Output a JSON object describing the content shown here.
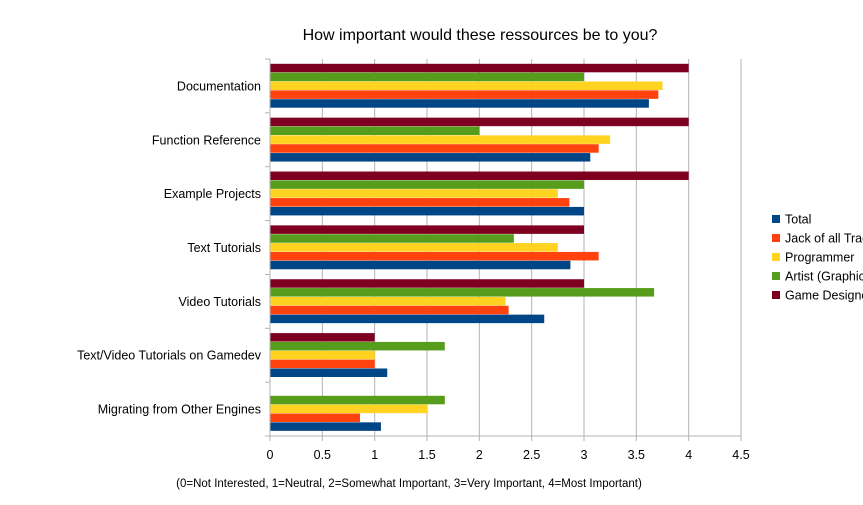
{
  "chart_data": {
    "type": "bar",
    "orientation": "horizontal",
    "title": "How important would these ressources be to you?",
    "xlabel": "(0=Not Interested, 1=Neutral, 2=Somewhat Important, 3=Very Important, 4=Most Important)",
    "ylabel": "",
    "xlim": [
      0,
      4.5
    ],
    "xticks": [
      "0",
      "0.5",
      "1",
      "1.5",
      "2",
      "2.5",
      "3",
      "3.5",
      "4",
      "4.5"
    ],
    "grid": "vertical",
    "legend": "right",
    "categories": [
      "Documentation",
      "Function Reference",
      "Example Projects",
      "Text Tutorials",
      "Video Tutorials",
      "Text/Video Tutorials on Gamedev",
      "Migrating from Other Engines"
    ],
    "series": [
      {
        "name": "Total",
        "color": "#004586",
        "values": [
          3.62,
          3.06,
          3.0,
          2.87,
          2.62,
          1.12,
          1.06
        ]
      },
      {
        "name": "Jack of all Trades",
        "color": "#ff420e",
        "values": [
          3.71,
          3.14,
          2.86,
          3.14,
          2.28,
          1.0,
          0.86
        ]
      },
      {
        "name": "Programmer",
        "color": "#ffd320",
        "values": [
          3.75,
          3.25,
          2.75,
          2.75,
          2.25,
          1.0,
          1.5
        ]
      },
      {
        "name": "Artist (Graphics)",
        "color": "#579d1c",
        "values": [
          3.0,
          2.0,
          3.0,
          2.33,
          3.67,
          1.67,
          1.67
        ]
      },
      {
        "name": "Game Designer",
        "color": "#7e0021",
        "values": [
          4.0,
          4.0,
          4.0,
          3.0,
          3.0,
          1.0,
          0
        ]
      }
    ]
  }
}
